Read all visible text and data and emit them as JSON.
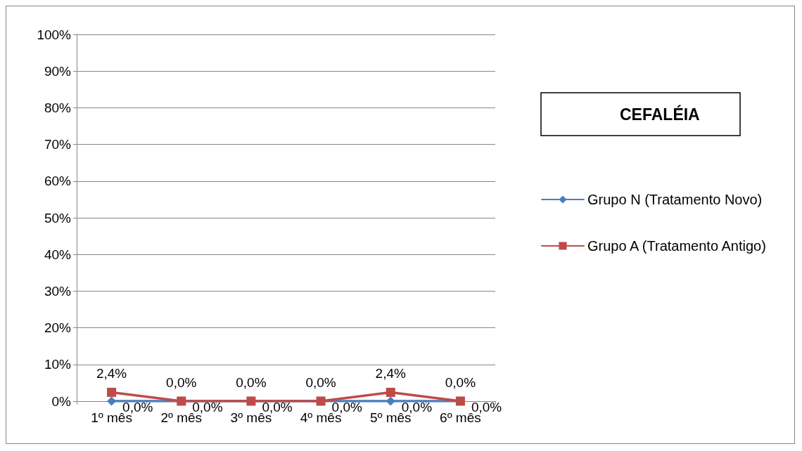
{
  "chart_data": {
    "type": "line",
    "title": "CEFALÉIA",
    "categories": [
      "1º mês",
      "2º mês",
      "3º mês",
      "4º mês",
      "5º mês",
      "6º mês"
    ],
    "series": [
      {
        "name": "Grupo N (Tratamento Novo)",
        "color": "#4a7ebb",
        "marker": "diamond",
        "values": [
          0,
          0,
          0,
          0,
          0,
          0
        ],
        "value_labels": [
          "0,0%",
          "0,0%",
          "0,0%",
          "0,0%",
          "0,0%",
          "0,0%"
        ]
      },
      {
        "name": "Grupo A (Tratamento Antigo)",
        "color": "#be4b48",
        "marker": "square",
        "values": [
          2.4,
          0,
          0,
          0,
          2.4,
          0
        ],
        "value_labels": [
          "2,4%",
          "0,0%",
          "0,0%",
          "0,0%",
          "2,4%",
          "0,0%"
        ]
      }
    ],
    "ylim": [
      0,
      100
    ],
    "yticks": [
      {
        "value": 0,
        "label": "0%"
      },
      {
        "value": 10,
        "label": "10%"
      },
      {
        "value": 20,
        "label": "20%"
      },
      {
        "value": 30,
        "label": "30%"
      },
      {
        "value": 40,
        "label": "40%"
      },
      {
        "value": 50,
        "label": "50%"
      },
      {
        "value": 60,
        "label": "60%"
      },
      {
        "value": 70,
        "label": "70%"
      },
      {
        "value": 80,
        "label": "80%"
      },
      {
        "value": 90,
        "label": "90%"
      },
      {
        "value": 100,
        "label": "100%"
      }
    ],
    "grid": "y",
    "legend": "right",
    "line_style": "solid"
  }
}
